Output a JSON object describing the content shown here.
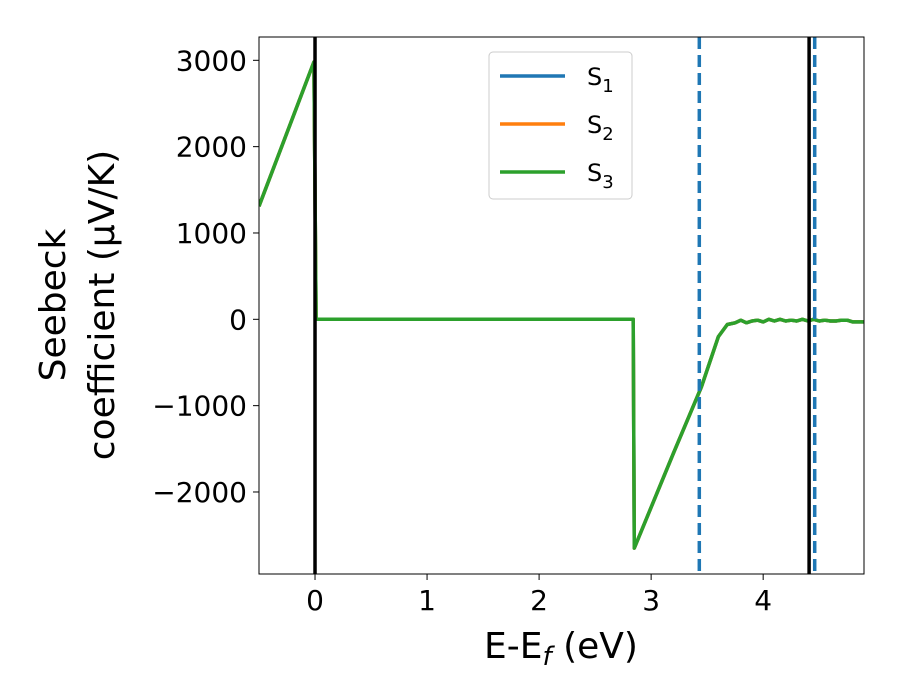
{
  "chart_data": {
    "type": "line",
    "xlabel": "E-E_f (eV)",
    "ylabel_line1": "Seebeck",
    "ylabel_line2": "coefficient  (μV/K)",
    "xlim": [
      -0.5,
      4.9
    ],
    "ylim": [
      -2950,
      3270
    ],
    "x_ticks": [
      0,
      1,
      2,
      3,
      4
    ],
    "x_tick_labels": [
      "0",
      "1",
      "2",
      "3",
      "4"
    ],
    "y_ticks": [
      -2000,
      -1000,
      0,
      1000,
      2000,
      3000
    ],
    "y_tick_labels": [
      "−2000",
      "−1000",
      "0",
      "1000",
      "2000",
      "3000"
    ],
    "grid": false,
    "legend_position": "top-center",
    "series": [
      {
        "name": "S_1",
        "color": "#1f77b4",
        "points": [
          [
            -0.5,
            1310
          ],
          [
            -0.01,
            2980
          ],
          [
            0.01,
            0
          ],
          [
            2.84,
            0
          ],
          [
            2.85,
            -2650
          ],
          [
            3.2,
            -1550
          ],
          [
            3.45,
            -780
          ],
          [
            3.6,
            -200
          ],
          [
            3.68,
            -60
          ],
          [
            3.75,
            -40
          ],
          [
            3.8,
            -10
          ],
          [
            3.85,
            -40
          ],
          [
            3.9,
            -20
          ],
          [
            3.95,
            -10
          ],
          [
            4.0,
            -30
          ],
          [
            4.05,
            0
          ],
          [
            4.1,
            -20
          ],
          [
            4.15,
            0
          ],
          [
            4.2,
            -20
          ],
          [
            4.25,
            -10
          ],
          [
            4.3,
            -20
          ],
          [
            4.35,
            0
          ],
          [
            4.4,
            -20
          ],
          [
            4.45,
            0
          ],
          [
            4.5,
            -20
          ],
          [
            4.55,
            -10
          ],
          [
            4.6,
            -20
          ],
          [
            4.65,
            -20
          ],
          [
            4.7,
            -10
          ],
          [
            4.75,
            -10
          ],
          [
            4.8,
            -30
          ],
          [
            4.9,
            -30
          ]
        ]
      },
      {
        "name": "S_2",
        "color": "#ff7f0e",
        "points": [
          [
            -0.5,
            1310
          ],
          [
            -0.01,
            2980
          ],
          [
            0.01,
            0
          ],
          [
            2.84,
            0
          ],
          [
            2.85,
            -2650
          ],
          [
            3.2,
            -1550
          ],
          [
            3.45,
            -780
          ],
          [
            3.6,
            -200
          ],
          [
            3.68,
            -60
          ],
          [
            3.75,
            -40
          ],
          [
            3.8,
            -10
          ],
          [
            3.85,
            -40
          ],
          [
            3.9,
            -20
          ],
          [
            3.95,
            -10
          ],
          [
            4.0,
            -30
          ],
          [
            4.05,
            0
          ],
          [
            4.1,
            -20
          ],
          [
            4.15,
            0
          ],
          [
            4.2,
            -20
          ],
          [
            4.25,
            -10
          ],
          [
            4.3,
            -20
          ],
          [
            4.35,
            0
          ],
          [
            4.4,
            -20
          ],
          [
            4.45,
            0
          ],
          [
            4.5,
            -20
          ],
          [
            4.55,
            -10
          ],
          [
            4.6,
            -20
          ],
          [
            4.65,
            -20
          ],
          [
            4.7,
            -10
          ],
          [
            4.75,
            -10
          ],
          [
            4.8,
            -30
          ],
          [
            4.9,
            -30
          ]
        ]
      },
      {
        "name": "S_3",
        "color": "#2ca02c",
        "points": [
          [
            -0.5,
            1310
          ],
          [
            -0.01,
            2980
          ],
          [
            0.01,
            0
          ],
          [
            2.84,
            0
          ],
          [
            2.85,
            -2650
          ],
          [
            3.2,
            -1550
          ],
          [
            3.45,
            -780
          ],
          [
            3.6,
            -200
          ],
          [
            3.68,
            -60
          ],
          [
            3.75,
            -40
          ],
          [
            3.8,
            -10
          ],
          [
            3.85,
            -40
          ],
          [
            3.9,
            -20
          ],
          [
            3.95,
            -10
          ],
          [
            4.0,
            -30
          ],
          [
            4.05,
            0
          ],
          [
            4.1,
            -20
          ],
          [
            4.15,
            0
          ],
          [
            4.2,
            -20
          ],
          [
            4.25,
            -10
          ],
          [
            4.3,
            -20
          ],
          [
            4.35,
            0
          ],
          [
            4.4,
            -20
          ],
          [
            4.45,
            0
          ],
          [
            4.5,
            -20
          ],
          [
            4.55,
            -10
          ],
          [
            4.6,
            -20
          ],
          [
            4.65,
            -20
          ],
          [
            4.7,
            -10
          ],
          [
            4.75,
            -10
          ],
          [
            4.8,
            -30
          ],
          [
            4.9,
            -30
          ]
        ]
      }
    ],
    "vertical_lines": [
      {
        "x": 0.0,
        "color": "#000000",
        "style": "solid"
      },
      {
        "x": 4.41,
        "color": "#000000",
        "style": "solid"
      },
      {
        "x": 3.43,
        "color": "#1f77b4",
        "style": "dashed"
      },
      {
        "x": 4.46,
        "color": "#1f77b4",
        "style": "dashed"
      }
    ]
  }
}
